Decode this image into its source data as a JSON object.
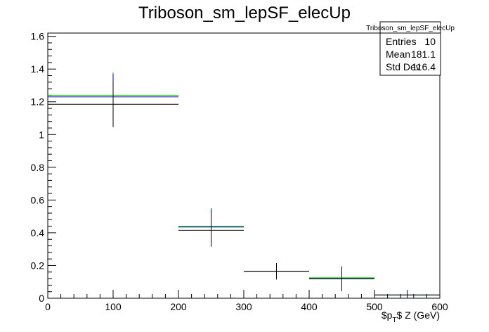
{
  "chart_data": {
    "type": "histogram",
    "title": "Triboson_sm_lepSF_elecUp",
    "xlabel": "$p_T$ Z (GeV)",
    "ylabel": "",
    "xlim": [
      0,
      600
    ],
    "ylim": [
      0,
      1.62
    ],
    "x_ticks": [
      "0",
      "100",
      "200",
      "300",
      "400",
      "500",
      "600"
    ],
    "y_ticks": [
      "0",
      "0.2",
      "0.4",
      "0.6",
      "0.8",
      "1",
      "1.2",
      "1.4",
      "1.6"
    ],
    "bins": [
      [
        0,
        200
      ],
      [
        200,
        300
      ],
      [
        300,
        400
      ],
      [
        400,
        500
      ],
      [
        500,
        600
      ]
    ],
    "series": [
      {
        "color": "#000000",
        "values": [
          1.185,
          0.415,
          0.165,
          0.118,
          0.02
        ],
        "errors": [
          0.14,
          0.1,
          0.05,
          0.075,
          0.03
        ]
      },
      {
        "color": "#00cc00",
        "values": [
          1.24,
          0.44,
          0.165,
          0.125,
          0.02
        ],
        "errors": [
          0.14,
          0.11,
          0.05,
          0.07,
          0.03
        ]
      },
      {
        "color": "#0000aa",
        "values": [
          1.23,
          0.435,
          0.165,
          0.12,
          0.02
        ],
        "errors": [
          0.14,
          0.11,
          0.05,
          0.07,
          0.03
        ]
      }
    ],
    "stats_box": {
      "title": "Triboson_sm_lepSF_elecUp",
      "rows": [
        {
          "label": "Entries",
          "value": "10"
        },
        {
          "label": "Mean",
          "value": "181.1"
        },
        {
          "label": "Std Dev",
          "value": "116.4"
        }
      ]
    },
    "grid": false,
    "legend": "top-right"
  }
}
